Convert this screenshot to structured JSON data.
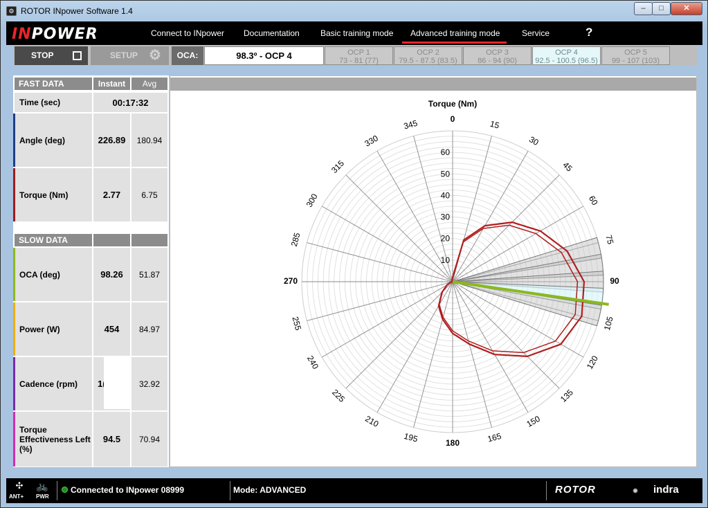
{
  "window": {
    "title": "ROTOR INpower Software 1.4",
    "min": "–",
    "max": "□",
    "close": "✕"
  },
  "logo": {
    "part1": "IN",
    "part2": "POWER"
  },
  "menu": {
    "connect": "Connect to INpower",
    "documentation": "Documentation",
    "basic": "Basic training mode",
    "advanced": "Advanced training mode",
    "service": "Service",
    "help": "?"
  },
  "toolbar": {
    "stop": "STOP",
    "setup": "SETUP",
    "oca_label": "OCA:",
    "oca_value": "98.3º - OCP 4",
    "ocps": [
      {
        "name": "OCP 1",
        "range": "73 - 81 (77)"
      },
      {
        "name": "OCP 2",
        "range": "79.5 - 87.5 (83.5)"
      },
      {
        "name": "OCP 3",
        "range": "86 - 94 (90)"
      },
      {
        "name": "OCP 4",
        "range": "92.5 - 100.5 (96.5)"
      },
      {
        "name": "OCP 5",
        "range": "99 - 107 (103)"
      }
    ]
  },
  "fast": {
    "header": "FAST DATA",
    "col_instant": "Instant",
    "col_avg": "Avg",
    "time_label": "Time (sec)",
    "time_value": "00:17:32",
    "angle_label": "Angle (deg)",
    "angle_inst": "226.89",
    "angle_avg": "180.94",
    "torque_label": "Torque (Nm)",
    "torque_inst": "2.77",
    "torque_avg": "6.75"
  },
  "slow": {
    "header": "SLOW DATA",
    "oca_label": "OCA (deg)",
    "oca_inst": "98.26",
    "oca_avg": "51.87",
    "power_label": "Power (W)",
    "power_inst": "454",
    "power_avg": "84.97",
    "cadence_label": "Cadence (rpm)",
    "cadence_inst": "1(",
    "cadence_avg": "32.92",
    "te_label": "Torque Effectiveness Left (%)",
    "te_inst": "94.5",
    "te_avg": "70.94"
  },
  "colors": {
    "angle": "#1f3c88",
    "torque": "#9b1b1b",
    "oca": "#8cb81c",
    "power": "#f0b000",
    "cadence": "#7a2aa8",
    "te": "#d02eb0",
    "curve": "#b01e1e"
  },
  "chart_data": {
    "type": "polar",
    "title": "Torque (Nm)",
    "angle_ticks": [
      0,
      15,
      30,
      45,
      60,
      75,
      90,
      105,
      120,
      135,
      150,
      165,
      180,
      195,
      210,
      225,
      240,
      255,
      270,
      285,
      300,
      315,
      330,
      345
    ],
    "radial_ticks": [
      10,
      20,
      30,
      40,
      50,
      60
    ],
    "r_max": 70,
    "oca_line_deg": 98.3,
    "ocp_sectors": [
      [
        73,
        81
      ],
      [
        79.5,
        87.5
      ],
      [
        86,
        94
      ],
      [
        92.5,
        100.5
      ],
      [
        99,
        107
      ]
    ],
    "active_sector": 4,
    "torque_curve": [
      {
        "deg": 0,
        "r": 2
      },
      {
        "deg": 15,
        "r": 20
      },
      {
        "deg": 30,
        "r": 30
      },
      {
        "deg": 45,
        "r": 39
      },
      {
        "deg": 60,
        "r": 47
      },
      {
        "deg": 75,
        "r": 55
      },
      {
        "deg": 90,
        "r": 61
      },
      {
        "deg": 105,
        "r": 62
      },
      {
        "deg": 120,
        "r": 58
      },
      {
        "deg": 135,
        "r": 49
      },
      {
        "deg": 150,
        "r": 39
      },
      {
        "deg": 165,
        "r": 30
      },
      {
        "deg": 180,
        "r": 24
      },
      {
        "deg": 195,
        "r": 18
      },
      {
        "deg": 210,
        "r": 13
      },
      {
        "deg": 225,
        "r": 7
      },
      {
        "deg": 240,
        "r": 3
      },
      {
        "deg": 255,
        "r": 1
      },
      {
        "deg": 270,
        "r": 0
      },
      {
        "deg": 300,
        "r": 0
      },
      {
        "deg": 330,
        "r": 0
      },
      {
        "deg": 345,
        "r": 1
      }
    ]
  },
  "status": {
    "connected": "Connected to INpower 08999",
    "mode": "Mode: ADVANCED",
    "ant": "ANT+",
    "pwr": "PWR",
    "brand1": "ROTOR",
    "brand2": "indra"
  }
}
